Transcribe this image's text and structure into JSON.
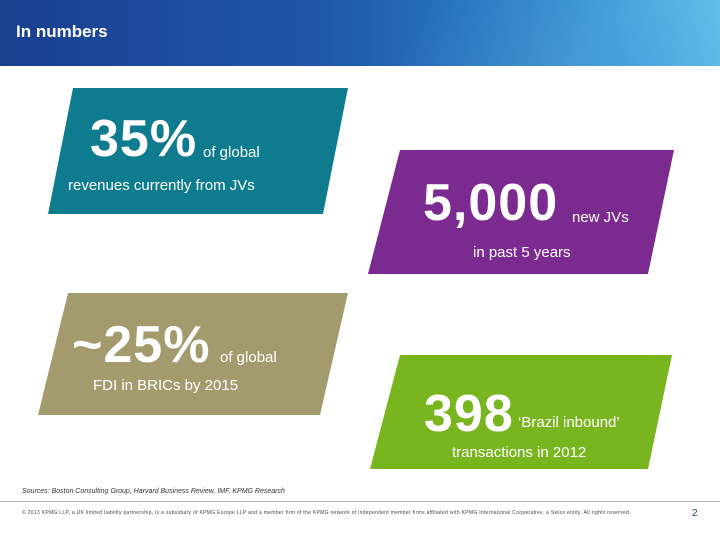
{
  "header": {
    "title": "In numbers"
  },
  "stats": [
    {
      "big": "35%",
      "small": "of global",
      "line2": "revenues currently from JVs",
      "color": "#0e7c8e"
    },
    {
      "big": "5,000",
      "small": "new JVs",
      "line2": "in past 5 years",
      "color": "#7b2a8f"
    },
    {
      "big": "~25%",
      "small": "of global",
      "line2": "FDI in BRICs by 2015",
      "color": "#a39a6e"
    },
    {
      "big": "398",
      "small": "‘Brazil inbound’",
      "line2": "transactions in 2012",
      "color": "#78b51e"
    }
  ],
  "sources": "Sources: Boston Consulting Group, Harvard Business Review, IMF, KPMG Research",
  "footer": "© 2013 KPMG LLP, a UK limited liability partnership, is a subsidiary of KPMG Europe LLP and a member firm of the KPMG network of independent member firms affiliated with KPMG International Cooperative, a Swiss entity. All rights reserved.",
  "page_number": "2"
}
